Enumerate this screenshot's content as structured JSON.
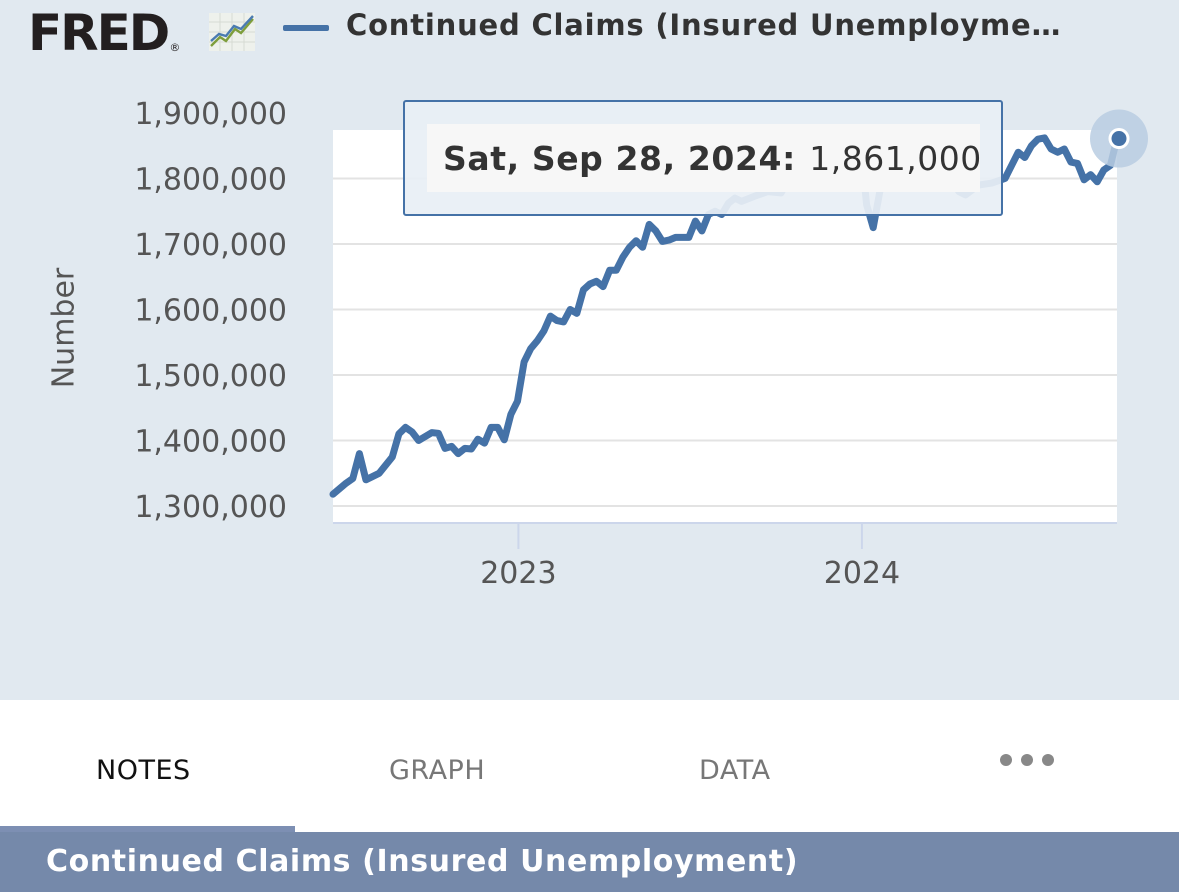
{
  "header": {
    "logo_text": "FRED",
    "logo_reg": "®",
    "legend_label": "Continued Claims (Insured Unemployme…"
  },
  "tooltip": {
    "date": "Sat, Sep 28, 2024",
    "separator": ":",
    "value": "1,861,000"
  },
  "tabs": [
    {
      "label": "NOTES"
    },
    {
      "label": "GRAPH"
    },
    {
      "label": "DATA"
    }
  ],
  "more_icon": "ellipsis-icon",
  "title_bar": {
    "text": "Continued Claims (Insured Unemployment)"
  },
  "colors": {
    "series": "#4572a7",
    "panel_bg": "#e1e9f0",
    "active_tab_indicator": "#7d8fb3",
    "title_bar_bg": "#7589aa"
  },
  "chart_data": {
    "type": "line",
    "ylabel": "Number",
    "yticks": [
      "1,300,000",
      "1,400,000",
      "1,500,000",
      "1,600,000",
      "1,700,000",
      "1,800,000",
      "1,900,000"
    ],
    "xticks": [
      "2023",
      "2024"
    ],
    "ylim": [
      1300000,
      1900000
    ],
    "xlim": [
      "2022-06-18",
      "2024-09-28"
    ],
    "grid": true,
    "series": [
      {
        "name": "Continued Claims (Insured Unemployment)",
        "x": [
          "2022-06-18",
          "2022-07-02",
          "2022-07-09",
          "2022-07-16",
          "2022-07-23",
          "2022-08-06",
          "2022-08-20",
          "2022-08-27",
          "2022-09-03",
          "2022-09-10",
          "2022-09-17",
          "2022-10-01",
          "2022-10-08",
          "2022-10-15",
          "2022-10-22",
          "2022-10-29",
          "2022-11-05",
          "2022-11-12",
          "2022-11-19",
          "2022-11-26",
          "2022-12-03",
          "2022-12-10",
          "2022-12-17",
          "2022-12-24",
          "2022-12-31",
          "2023-01-07",
          "2023-01-14",
          "2023-01-21",
          "2023-01-28",
          "2023-02-04",
          "2023-02-11",
          "2023-02-18",
          "2023-02-25",
          "2023-03-04",
          "2023-03-11",
          "2023-03-18",
          "2023-03-25",
          "2023-04-01",
          "2023-04-08",
          "2023-04-15",
          "2023-04-22",
          "2023-04-29",
          "2023-05-06",
          "2023-05-13",
          "2023-05-20",
          "2023-05-27",
          "2023-06-03",
          "2023-06-10",
          "2023-06-17",
          "2023-07-01",
          "2023-07-08",
          "2023-07-15",
          "2023-07-22",
          "2023-07-29",
          "2023-08-05",
          "2023-08-12",
          "2023-08-19",
          "2023-08-26",
          "2023-09-09",
          "2023-09-23",
          "2023-10-07",
          "2023-10-14",
          "2023-10-21",
          "2023-10-28",
          "2023-11-04",
          "2023-11-11",
          "2023-11-18",
          "2023-11-25",
          "2023-12-02",
          "2023-12-16",
          "2023-12-30",
          "2024-01-06",
          "2024-01-13",
          "2024-01-20",
          "2024-02-03",
          "2024-02-17",
          "2024-03-02",
          "2024-03-16",
          "2024-03-30",
          "2024-04-06",
          "2024-04-13",
          "2024-04-20",
          "2024-05-04",
          "2024-05-18",
          "2024-06-01",
          "2024-06-08",
          "2024-06-15",
          "2024-06-22",
          "2024-06-29",
          "2024-07-06",
          "2024-07-13",
          "2024-07-20",
          "2024-07-27",
          "2024-08-03",
          "2024-08-10",
          "2024-08-17",
          "2024-08-24",
          "2024-08-31",
          "2024-09-07",
          "2024-09-14",
          "2024-09-21",
          "2024-09-28"
        ],
        "values": [
          1318000,
          1335000,
          1342000,
          1380000,
          1340000,
          1350000,
          1375000,
          1410000,
          1420000,
          1413000,
          1400000,
          1412000,
          1411000,
          1388000,
          1391000,
          1380000,
          1388000,
          1387000,
          1402000,
          1396000,
          1420000,
          1420000,
          1401000,
          1440000,
          1460000,
          1520000,
          1540000,
          1552000,
          1567000,
          1590000,
          1583000,
          1581000,
          1600000,
          1594000,
          1630000,
          1639000,
          1643000,
          1635000,
          1660000,
          1660000,
          1680000,
          1695000,
          1705000,
          1695000,
          1730000,
          1720000,
          1704000,
          1706000,
          1710000,
          1710000,
          1735000,
          1720000,
          1745000,
          1750000,
          1745000,
          1762000,
          1770000,
          1765000,
          1773000,
          1780000,
          1778000,
          1795000,
          1800000,
          1810000,
          1830000,
          1850000,
          1860000,
          1840000,
          1805000,
          1830000,
          1860000,
          1760000,
          1725000,
          1780000,
          1830000,
          1802000,
          1805000,
          1798000,
          1800000,
          1795000,
          1780000,
          1775000,
          1790000,
          1793000,
          1800000,
          1820000,
          1840000,
          1832000,
          1850000,
          1860000,
          1862000,
          1845000,
          1840000,
          1845000,
          1825000,
          1823000,
          1798000,
          1806000,
          1795000,
          1813000,
          1820000,
          1861000
        ]
      }
    ]
  }
}
